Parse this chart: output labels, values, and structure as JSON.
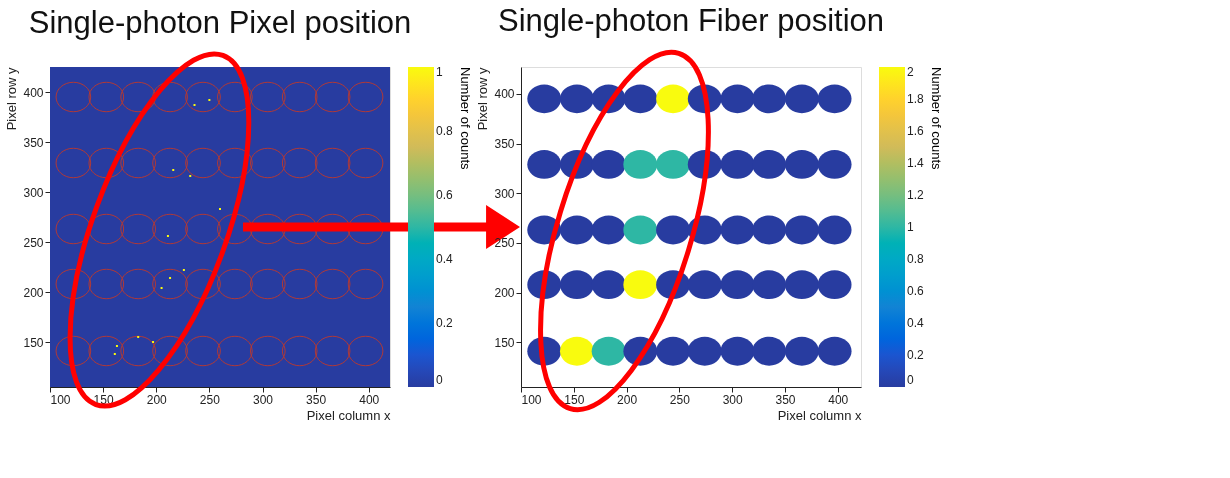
{
  "chart_data": [
    {
      "type": "scatter",
      "title": "Single-photon Pixel position",
      "xlabel": "Pixel column x",
      "ylabel": "Pixel row y",
      "clabel": "Number of counts",
      "marker": "square",
      "x": [
        236,
        250,
        216,
        232,
        260,
        211,
        226,
        213,
        205,
        183,
        197,
        163,
        161
      ],
      "values": [
        387,
        392,
        322,
        316,
        283,
        256,
        222,
        214,
        204,
        155,
        150,
        146,
        138
      ],
      "cvalues": [
        1,
        1,
        1,
        1,
        1,
        1,
        1,
        1,
        1,
        1,
        1,
        1,
        1
      ],
      "xlim": [
        100,
        420
      ],
      "ylim": [
        105,
        425
      ],
      "xticks": [
        100,
        150,
        200,
        250,
        300,
        350,
        400
      ],
      "yticks": [
        150,
        200,
        250,
        300,
        350,
        400
      ],
      "clim": [
        0,
        1
      ],
      "cticks": [
        0,
        0.2,
        0.4,
        0.6,
        0.8,
        1
      ],
      "grid": false
    },
    {
      "type": "scatter",
      "title": "Single-photon Fiber position",
      "xlabel": "Pixel column x",
      "ylabel": "Pixel row y",
      "clabel": "Number of counts",
      "marker": "circle",
      "x": [
        122,
        153,
        183,
        213,
        244,
        274,
        305,
        335,
        366,
        397,
        122,
        153,
        183,
        213,
        244,
        274,
        305,
        335,
        366,
        397,
        122,
        153,
        183,
        213,
        244,
        274,
        305,
        335,
        366,
        397,
        122,
        153,
        183,
        213,
        244,
        274,
        305,
        335,
        366,
        397,
        122,
        153,
        183,
        213,
        244,
        274,
        305,
        335,
        366,
        397
      ],
      "values": [
        141,
        141,
        141,
        141,
        141,
        141,
        141,
        141,
        141,
        141,
        208,
        208,
        208,
        208,
        208,
        208,
        208,
        208,
        208,
        208,
        263,
        263,
        263,
        263,
        263,
        263,
        263,
        263,
        263,
        263,
        329,
        329,
        329,
        329,
        329,
        329,
        329,
        329,
        329,
        329,
        395,
        395,
        395,
        395,
        395,
        395,
        395,
        395,
        395,
        395
      ],
      "cvalues": [
        0,
        2,
        1,
        0,
        0,
        0,
        0,
        0,
        0,
        0,
        0,
        0,
        0,
        2,
        0,
        0,
        0,
        0,
        0,
        0,
        0,
        0,
        0,
        1,
        0,
        0,
        0,
        0,
        0,
        0,
        0,
        0,
        0,
        1,
        1,
        0,
        0,
        0,
        0,
        0,
        0,
        0,
        0,
        0,
        2,
        0,
        0,
        0,
        0,
        0
      ],
      "xlim": [
        100,
        422
      ],
      "ylim": [
        105,
        427
      ],
      "xticks": [
        100,
        150,
        200,
        250,
        300,
        350,
        400
      ],
      "yticks": [
        150,
        200,
        250,
        300,
        350,
        400
      ],
      "clim": [
        0,
        2
      ],
      "cticks": [
        0,
        0.2,
        0.4,
        0.6,
        0.8,
        1,
        1.2,
        1.4,
        1.6,
        1.8,
        2
      ],
      "grid": false
    }
  ]
}
